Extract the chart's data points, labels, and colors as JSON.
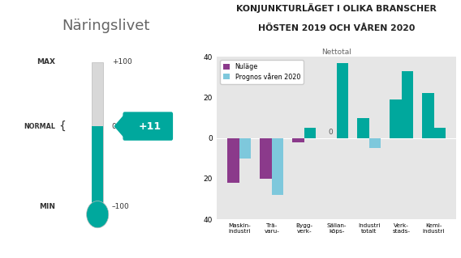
{
  "title_line1": "KONJUNKTURLÄGET I OLIKA BRANSCHER",
  "title_line2": "HÖSTEN 2019 OCH VÅREN 2020",
  "subtitle": "Nettotal",
  "categories": [
    "Maskin-\nindustri",
    "Trä-\nvaru-",
    "Bygg-\nverk-",
    "Sällan-\nköps-",
    "Industri\ntotalt",
    "Verk-\nstads-",
    "Kemi-\nindustri"
  ],
  "nuläge": [
    -22,
    -20,
    -2,
    0,
    10,
    19,
    22
  ],
  "prognos": [
    -10,
    -28,
    5,
    37,
    -5,
    33,
    5
  ],
  "color_nuläge": "#8B3A8B",
  "color_prognos": "#7EC8DC",
  "color_teal": "#00A89D",
  "ylim": [
    -40,
    40
  ],
  "yticks": [
    -40,
    -20,
    0,
    20,
    40
  ],
  "bg_chart": "#e6e6e6",
  "thermometer_label": "+11",
  "thermometer_value": 11,
  "label_nuläge": "Nuläge",
  "label_prognos": "Prognos våren 2020",
  "naringslivet_text": "Näringslivet",
  "max_label": "MAX",
  "normal_label": "NORMAL",
  "min_label": "MIN",
  "max_val": "+100",
  "zero_val": "0",
  "min_val": "–100"
}
